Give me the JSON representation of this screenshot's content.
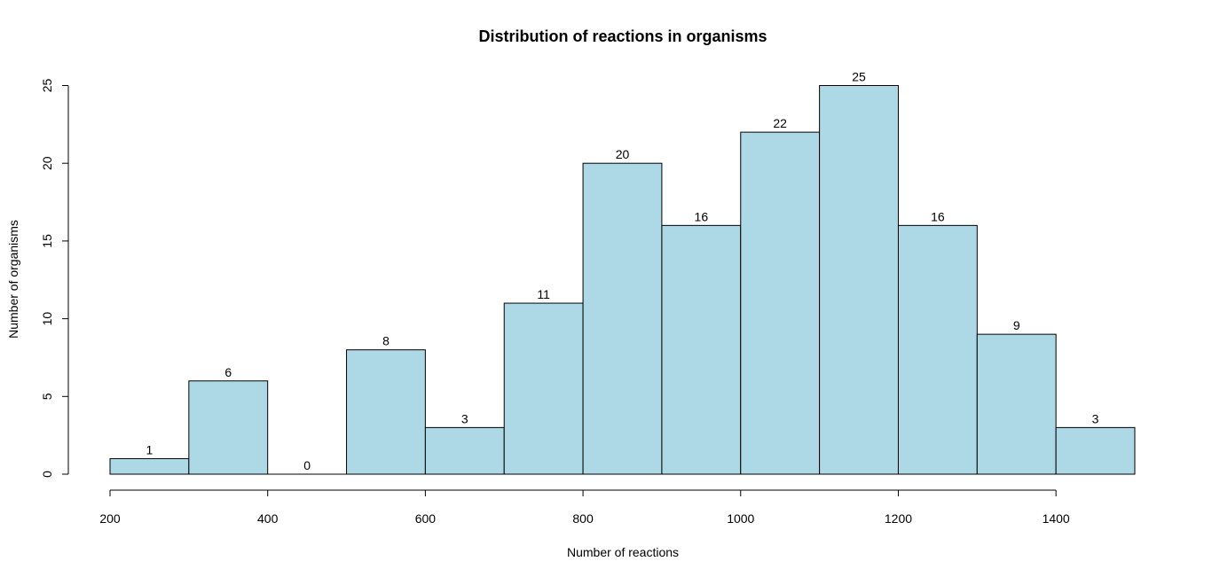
{
  "chart_data": {
    "type": "bar",
    "title": "Distribution of reactions in organisms",
    "xlabel": "Number of reactions",
    "ylabel": "Number of organisms",
    "bins": [
      {
        "from": 200,
        "to": 300,
        "count": 1
      },
      {
        "from": 300,
        "to": 400,
        "count": 6
      },
      {
        "from": 400,
        "to": 500,
        "count": 0
      },
      {
        "from": 500,
        "to": 600,
        "count": 8
      },
      {
        "from": 600,
        "to": 700,
        "count": 3
      },
      {
        "from": 700,
        "to": 800,
        "count": 11
      },
      {
        "from": 800,
        "to": 900,
        "count": 20
      },
      {
        "from": 900,
        "to": 1000,
        "count": 16
      },
      {
        "from": 1000,
        "to": 1100,
        "count": 22
      },
      {
        "from": 1100,
        "to": 1200,
        "count": 25
      },
      {
        "from": 1200,
        "to": 1300,
        "count": 16
      },
      {
        "from": 1300,
        "to": 1400,
        "count": 9
      },
      {
        "from": 1400,
        "to": 1500,
        "count": 3
      }
    ],
    "x_ticks": [
      200,
      400,
      600,
      800,
      1000,
      1200,
      1400
    ],
    "x_tick_labels": [
      "200",
      "400",
      "600",
      "800",
      "1000",
      "1200",
      "1400"
    ],
    "y_ticks": [
      0,
      5,
      10,
      15,
      20,
      25
    ],
    "y_tick_labels": [
      "0",
      "5",
      "10",
      "15",
      "20",
      "25"
    ],
    "xlim": [
      200,
      1500
    ],
    "ylim": [
      0,
      25
    ],
    "bar_color": "#add8e6",
    "grid": false,
    "legend": "none"
  }
}
